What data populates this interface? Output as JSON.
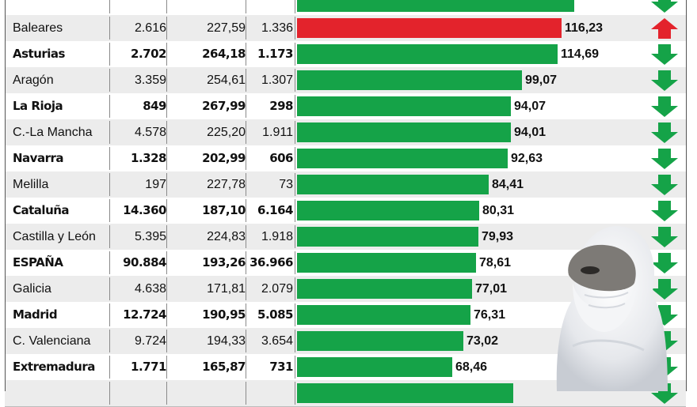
{
  "chart_data": {
    "type": "bar",
    "columns": [
      "",
      "",
      "",
      ""
    ],
    "rows": [
      {
        "name": "",
        "a": "",
        "b": "",
        "c": "",
        "value": null,
        "trend": "down",
        "bold": true,
        "partial": true
      },
      {
        "name": "Baleares",
        "a": "2.616",
        "b": "227,59",
        "c": "1.336",
        "value": 116.23,
        "label": "116,23",
        "trend": "up",
        "bold": false
      },
      {
        "name": "Asturias",
        "a": "2.702",
        "b": "264,18",
        "c": "1.173",
        "value": 114.69,
        "label": "114,69",
        "trend": "down",
        "bold": true
      },
      {
        "name": "Aragón",
        "a": "3.359",
        "b": "254,61",
        "c": "1.307",
        "value": 99.07,
        "label": "99,07",
        "trend": "down",
        "bold": false
      },
      {
        "name": "La Rioja",
        "a": "849",
        "b": "267,99",
        "c": "298",
        "value": 94.07,
        "label": "94,07",
        "trend": "down",
        "bold": true
      },
      {
        "name": "C.-La Mancha",
        "a": "4.578",
        "b": "225,20",
        "c": "1.911",
        "value": 94.01,
        "label": "94,01",
        "trend": "down",
        "bold": false
      },
      {
        "name": "Navarra",
        "a": "1.328",
        "b": "202,99",
        "c": "606",
        "value": 92.63,
        "label": "92,63",
        "trend": "down",
        "bold": true
      },
      {
        "name": "Melilla",
        "a": "197",
        "b": "227,78",
        "c": "73",
        "value": 84.41,
        "label": "84,41",
        "trend": "down",
        "bold": false
      },
      {
        "name": "Cataluña",
        "a": "14.360",
        "b": "187,10",
        "c": "6.164",
        "value": 80.31,
        "label": "80,31",
        "trend": "down",
        "bold": true
      },
      {
        "name": "Castilla y León",
        "a": "5.395",
        "b": "224,83",
        "c": "1.918",
        "value": 79.93,
        "label": "79,93",
        "trend": "down",
        "bold": false
      },
      {
        "name": "ESPAÑA",
        "a": "90.884",
        "b": "193,26",
        "c": "36.966",
        "value": 78.61,
        "label": "78,61",
        "trend": "down",
        "bold": true
      },
      {
        "name": "Galicia",
        "a": "4.638",
        "b": "171,81",
        "c": "2.079",
        "value": 77.01,
        "label": "77,01",
        "trend": "down",
        "bold": false
      },
      {
        "name": "Madrid",
        "a": "12.724",
        "b": "190,95",
        "c": "5.085",
        "value": 76.31,
        "label": "76,31",
        "trend": "down",
        "bold": true
      },
      {
        "name": "C. Valenciana",
        "a": "9.724",
        "b": "194,33",
        "c": "3.654",
        "value": 73.02,
        "label": "73,02",
        "trend": "down",
        "bold": false
      },
      {
        "name": "Extremadura",
        "a": "1.771",
        "b": "165,87",
        "c": "731",
        "value": 68.46,
        "label": "68,46",
        "trend": "down",
        "bold": true
      },
      {
        "name": "",
        "a": "",
        "b": "",
        "c": "",
        "value": null,
        "trend": "down",
        "bold": false,
        "partial": true
      }
    ],
    "colors": {
      "down_bar": "#15a348",
      "up_bar": "#e3232c",
      "down_arrow": "#15a348",
      "up_arrow": "#e3232c"
    }
  },
  "figure": {
    "icon": "hazmat-suit-person-photo"
  }
}
